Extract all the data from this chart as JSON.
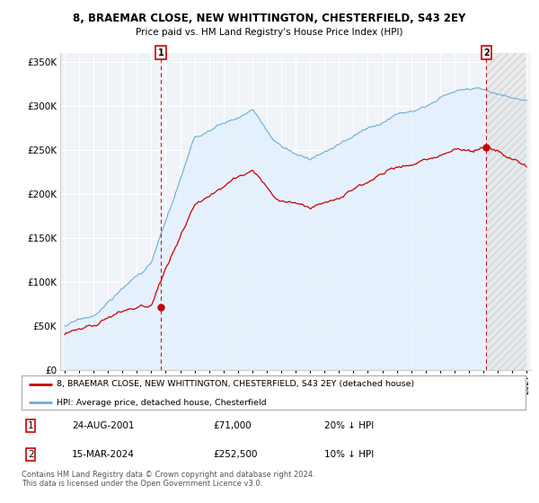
{
  "title": "8, BRAEMAR CLOSE, NEW WHITTINGTON, CHESTERFIELD, S43 2EY",
  "subtitle": "Price paid vs. HM Land Registry's House Price Index (HPI)",
  "ylim": [
    0,
    360000
  ],
  "yticks": [
    0,
    50000,
    100000,
    150000,
    200000,
    250000,
    300000,
    350000
  ],
  "xstart_year": 1995,
  "xend_year": 2027,
  "transaction1": {
    "year": 2001.65,
    "price": 71000,
    "label": "1",
    "date_str": "24-AUG-2001",
    "pct": "20% ↓ HPI"
  },
  "transaction2": {
    "year": 2024.21,
    "price": 252500,
    "label": "2",
    "date_str": "15-MAR-2024",
    "pct": "10% ↓ HPI"
  },
  "hpi_line_color": "#6baed6",
  "hpi_fill_color": "#ddeeff",
  "price_line_color": "#cc0000",
  "dashed_vline_color": "#cc0000",
  "marker_color": "#cc0000",
  "legend_entries": [
    "8, BRAEMAR CLOSE, NEW WHITTINGTON, CHESTERFIELD, S43 2EY (detached house)",
    "HPI: Average price, detached house, Chesterfield"
  ],
  "footer": "Contains HM Land Registry data © Crown copyright and database right 2024.\nThis data is licensed under the Open Government Licence v3.0.",
  "background_color": "#ffffff",
  "plot_bg_color": "#f0f4f8",
  "grid_color": "#ffffff",
  "hpi_seed": 17
}
